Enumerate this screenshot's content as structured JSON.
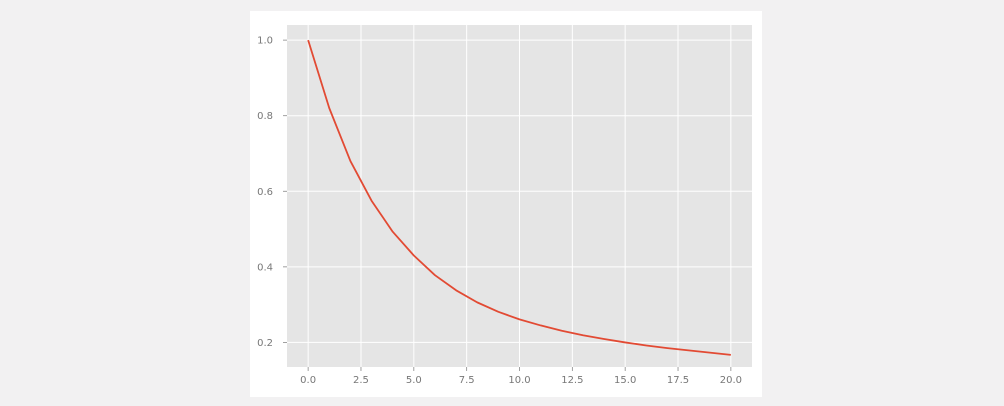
{
  "colors": {
    "page_background": "#f2f1f2",
    "card_background": "#ffffff",
    "plot_background": "#e5e5e5",
    "grid": "#ffffff",
    "tick_label": "#777777",
    "line": "#e24a33"
  },
  "chart_data": {
    "type": "line",
    "title": "",
    "xlabel": "",
    "ylabel": "",
    "grid": true,
    "xlim": [
      -1.0,
      21.0
    ],
    "ylim": [
      0.135,
      1.04
    ],
    "x_ticks": [
      0.0,
      2.5,
      5.0,
      7.5,
      10.0,
      12.5,
      15.0,
      17.5,
      20.0
    ],
    "x_tick_labels": [
      "0.0",
      "2.5",
      "5.0",
      "7.5",
      "10.0",
      "12.5",
      "15.0",
      "17.5",
      "20.0"
    ],
    "y_ticks": [
      0.2,
      0.4,
      0.6,
      0.8,
      1.0
    ],
    "y_tick_labels": [
      "0.2",
      "0.4",
      "0.6",
      "0.8",
      "1.0"
    ],
    "series": [
      {
        "color": "#e24a33",
        "x": [
          0,
          1,
          2,
          3,
          4,
          5,
          6,
          7,
          8,
          9,
          10,
          11,
          12,
          13,
          14,
          15,
          16,
          17,
          18,
          19,
          20
        ],
        "y": [
          1.0,
          0.82,
          0.68,
          0.575,
          0.493,
          0.43,
          0.378,
          0.338,
          0.306,
          0.281,
          0.261,
          0.245,
          0.231,
          0.219,
          0.209,
          0.2,
          0.192,
          0.185,
          0.179,
          0.173,
          0.167
        ]
      }
    ]
  }
}
